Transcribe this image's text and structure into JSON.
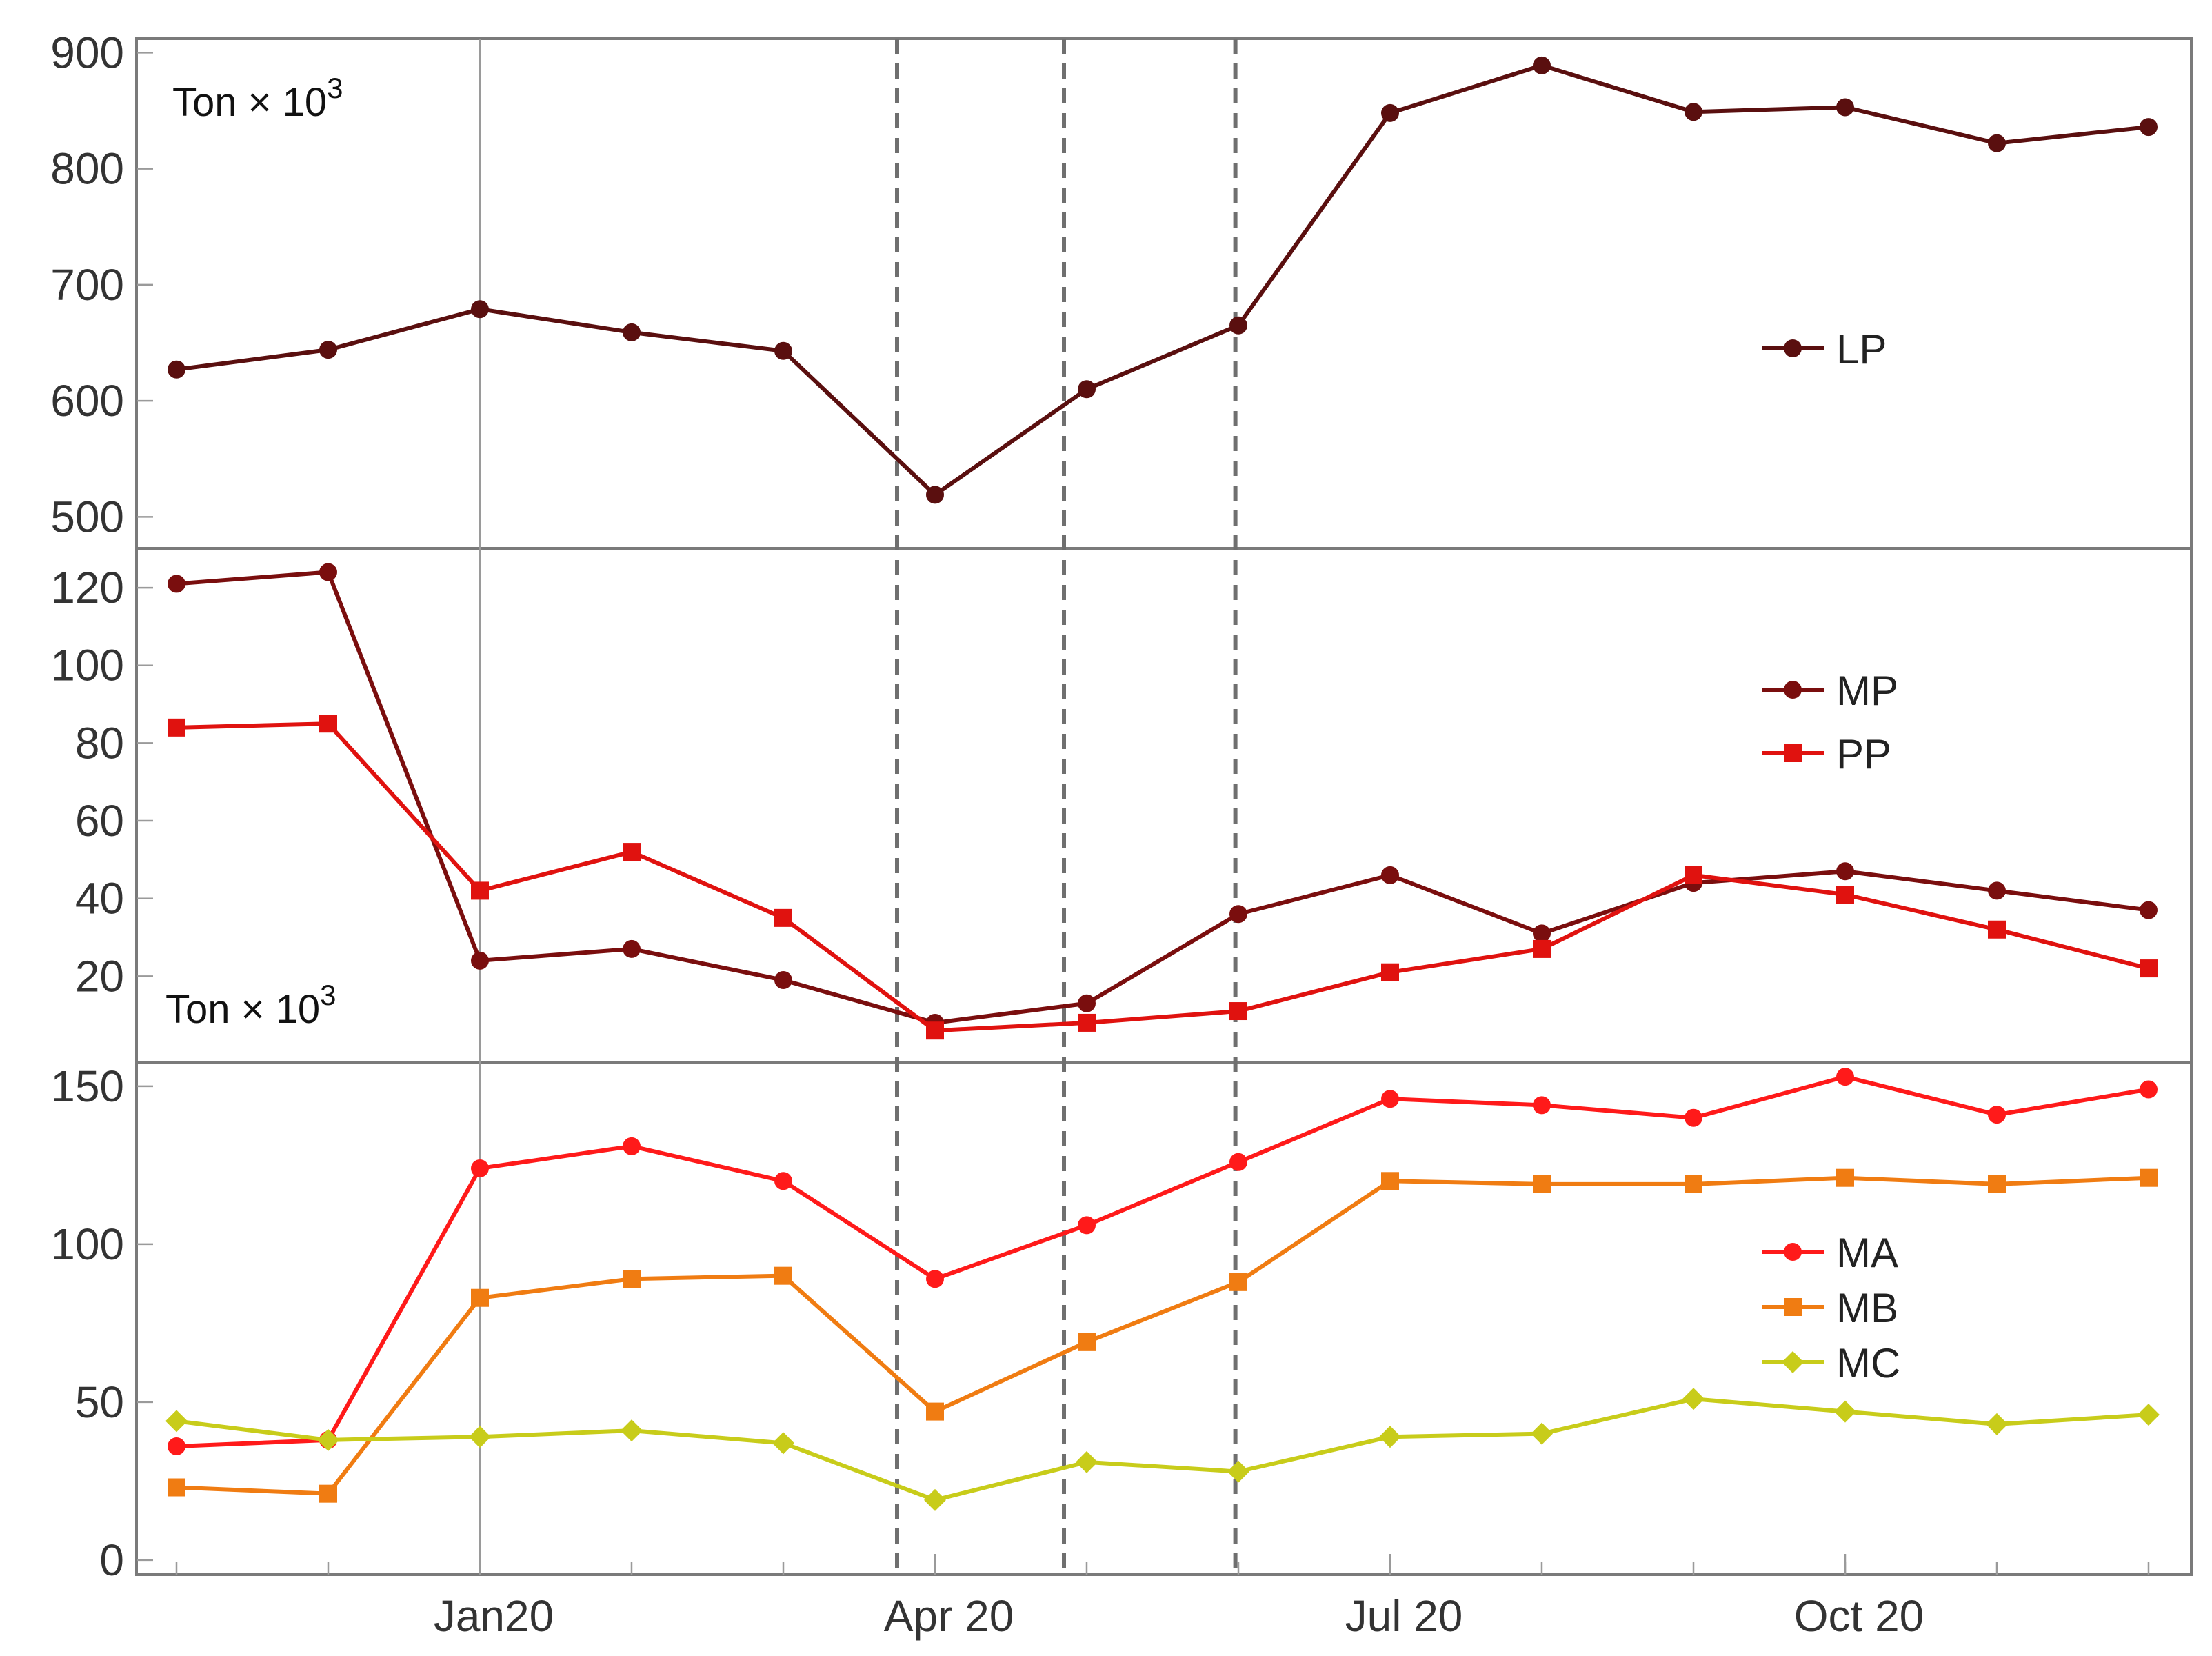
{
  "chart_data": {
    "type": "line",
    "x_ticks": [
      {
        "label": "Jan20",
        "month_index": 2
      },
      {
        "label": "Apr 20",
        "month_index": 5
      },
      {
        "label": "Jul 20",
        "month_index": 8
      },
      {
        "label": "Oct 20",
        "month_index": 11
      }
    ],
    "x_range": [
      0,
      13
    ],
    "reference_lines": [
      {
        "month_index": 2,
        "style": "solid"
      },
      {
        "month_index": 4.75,
        "style": "dashed"
      },
      {
        "month_index": 5.85,
        "style": "dashed"
      },
      {
        "month_index": 6.98,
        "style": "dashed"
      }
    ],
    "panels": [
      {
        "id": "top",
        "unit_label": "Ton × 10",
        "unit_label_exp": "3",
        "ylim": [
          480,
          905
        ],
        "yticks": [
          500,
          600,
          700,
          800,
          900
        ],
        "legend_position": "right-middle",
        "series": [
          {
            "name": "LP",
            "color": "#5a0f0f",
            "marker": "circle",
            "values": [
              627,
              644,
              679,
              659,
              643,
              519,
              610,
              665,
              848,
              889,
              849,
              853,
              822,
              836
            ]
          }
        ]
      },
      {
        "id": "middle",
        "unit_label": "Ton × 10",
        "unit_label_exp": "3",
        "ylim": [
          0,
          128
        ],
        "yticks": [
          20,
          40,
          60,
          80,
          100,
          120
        ],
        "legend_position": "top-right",
        "series": [
          {
            "name": "MP",
            "color": "#7a0e0e",
            "marker": "circle",
            "values": [
              121,
              124,
              24,
              27,
              19,
              8,
              13,
              36,
              46,
              31,
              44,
              47,
              42,
              37
            ]
          },
          {
            "name": "PP",
            "color": "#e0120f",
            "marker": "square",
            "values": [
              84,
              85,
              42,
              52,
              35,
              6,
              8,
              11,
              21,
              27,
              46,
              41,
              32,
              22
            ]
          }
        ]
      },
      {
        "id": "bottom",
        "unit_label": "",
        "ylim": [
          -2,
          155
        ],
        "yticks": [
          0,
          50,
          100,
          150
        ],
        "legend_position": "right-middle",
        "series": [
          {
            "name": "MA",
            "color": "#ff1a1a",
            "marker": "circle",
            "values": [
              36,
              38,
              124,
              131,
              120,
              89,
              106,
              126,
              146,
              144,
              140,
              153,
              141,
              149
            ]
          },
          {
            "name": "MB",
            "color": "#f07c12",
            "marker": "square",
            "values": [
              23,
              21,
              83,
              89,
              90,
              47,
              69,
              88,
              120,
              119,
              119,
              121,
              119,
              121
            ]
          },
          {
            "name": "MC",
            "color": "#c8cc1a",
            "marker": "diamond",
            "values": [
              44,
              38,
              39,
              41,
              37,
              19,
              31,
              28,
              39,
              40,
              51,
              47,
              43,
              46
            ]
          }
        ]
      }
    ]
  }
}
